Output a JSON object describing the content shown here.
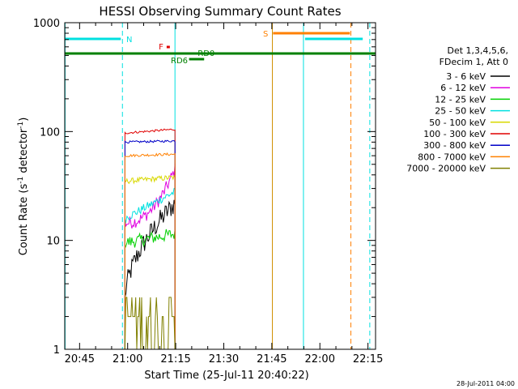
{
  "chart_data": {
    "type": "line",
    "title": "HESSI Observing Summary Count Rates",
    "xlabel": "Start Time (25-Jul-11 20:40:22)",
    "ylabel_main": "Count Rate (s",
    "ylabel_sup1": "-1",
    "ylabel_mid": " detector",
    "ylabel_sup2": "-1",
    "ylabel_end": ")",
    "timestamp": "28-Jul-2011 04:00",
    "y_scale": "log",
    "xlim_minutes": [
      0,
      97
    ],
    "ylim": [
      1,
      1000
    ],
    "x_ticks": [
      {
        "label": "20:45",
        "minute": 4.63
      },
      {
        "label": "21:00",
        "minute": 19.63
      },
      {
        "label": "21:15",
        "minute": 34.63
      },
      {
        "label": "21:30",
        "minute": 49.63
      },
      {
        "label": "21:45",
        "minute": 64.63
      },
      {
        "label": "22:00",
        "minute": 79.63
      },
      {
        "label": "22:15",
        "minute": 94.63
      }
    ],
    "y_ticks": [
      {
        "label": "1",
        "value": 1
      },
      {
        "label": "10",
        "value": 10
      },
      {
        "label": "100",
        "value": 100
      },
      {
        "label": "1000",
        "value": 1000
      }
    ],
    "legend": {
      "placement": "right",
      "header1": "Det 1,3,4,5,6,",
      "header2": "FDecim 1, Att 0"
    },
    "series": [
      {
        "name": "3 - 6 keV",
        "color": "#000000",
        "start": 18.8,
        "end": 34.4,
        "level_start": 2.8,
        "level_end": 22,
        "noise": 0.1
      },
      {
        "name": "6 - 12 keV",
        "color": "#e000e0",
        "start": 18.8,
        "end": 34.4,
        "level_start": 14.5,
        "level_end": 45,
        "noise": 0.06
      },
      {
        "name": "12 - 25 keV",
        "color": "#00d000",
        "start": 18.8,
        "end": 34.4,
        "level_start": 9.5,
        "level_end": 11.5,
        "noise": 0.06
      },
      {
        "name": "25 - 50 keV",
        "color": "#00e0e0",
        "start": 18.8,
        "end": 34.4,
        "level_start": 16,
        "level_end": 28,
        "noise": 0.04
      },
      {
        "name": "50 - 100 keV",
        "color": "#d8d800",
        "start": 18.8,
        "end": 34.4,
        "level_start": 35,
        "level_end": 38,
        "noise": 0.025
      },
      {
        "name": "100 - 300 keV",
        "color": "#e00000",
        "start": 18.8,
        "end": 34.4,
        "level_start": 97,
        "level_end": 105,
        "noise": 0.01
      },
      {
        "name": "300 - 800 keV",
        "color": "#0000c8",
        "start": 18.8,
        "end": 34.4,
        "level_start": 80,
        "level_end": 82,
        "noise": 0.01
      },
      {
        "name": "800 - 7000 keV",
        "color": "#ff8000",
        "start": 18.8,
        "end": 34.4,
        "level_start": 60,
        "level_end": 62,
        "noise": 0.012
      },
      {
        "name": "7000 - 20000 keV",
        "color": "#808000",
        "start": 18.8,
        "end": 34.4,
        "level_start": 1.5,
        "level_end": 2.0,
        "noise": 0.15
      }
    ],
    "annotations": [
      {
        "label": "N",
        "color": "#00e0e0"
      },
      {
        "label": "F",
        "color": "#e00000"
      },
      {
        "label": "RD0",
        "color": "#008000"
      },
      {
        "label": "RD6",
        "color": "#008000"
      },
      {
        "label": "S",
        "color": "#ff8000"
      }
    ]
  }
}
